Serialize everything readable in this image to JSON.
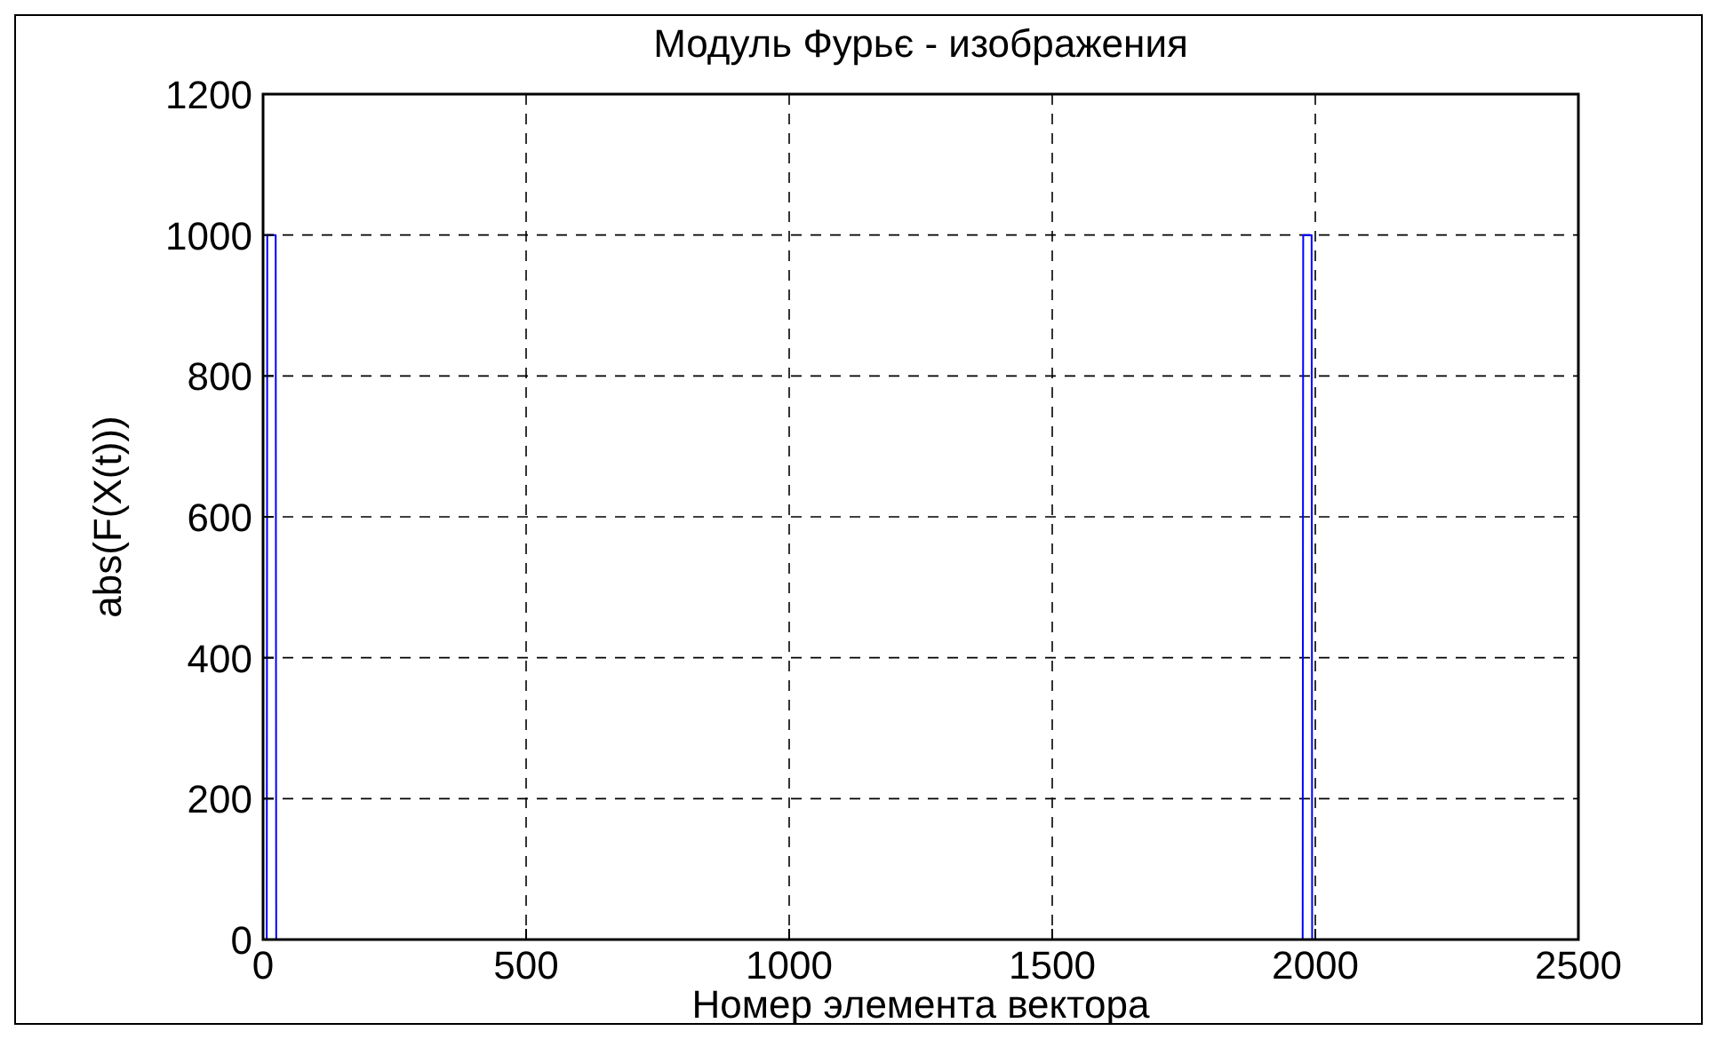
{
  "chart_data": {
    "type": "line",
    "title": "Модуль Фурьє - изображения",
    "xlabel": "Номер элемента вектора",
    "ylabel": "abs(F(X(t)))",
    "x": [
      1,
      7,
      8,
      24,
      25,
      1976,
      1977,
      1993,
      1994,
      2000
    ],
    "series": [
      {
        "color": "#0000ff",
        "values": [
          0,
          0,
          1000,
          1000,
          0,
          0,
          1000,
          1000,
          0,
          0
        ]
      }
    ],
    "xlim": [
      0,
      2500
    ],
    "xticks": [
      0,
      500,
      1000,
      1500,
      2000,
      2500
    ],
    "ylim": [
      0,
      1200
    ],
    "yticks": [
      0,
      200,
      400,
      600,
      800,
      1000,
      1200
    ],
    "grid": true
  }
}
